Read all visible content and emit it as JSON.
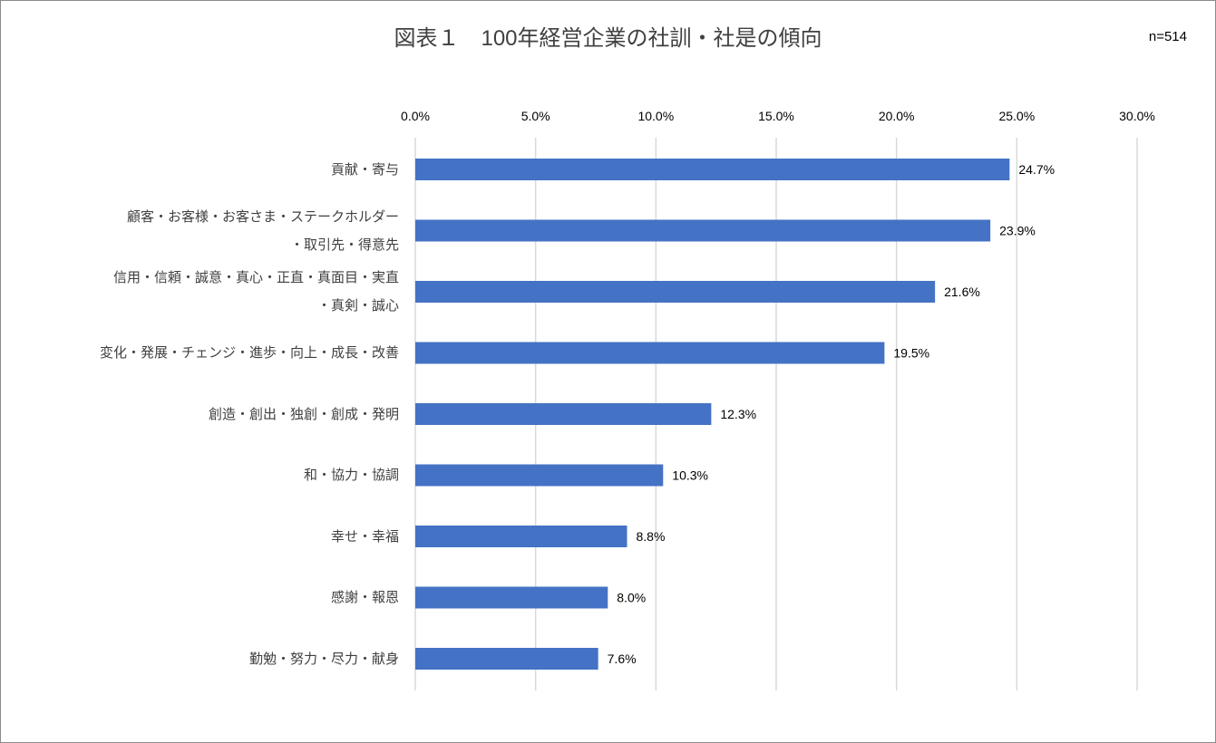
{
  "chart_data": {
    "type": "bar",
    "orientation": "horizontal",
    "title": "図表１　100年経営企業の社訓・社是の傾向",
    "annotation": "n=514",
    "categories": [
      "貢献・寄与",
      "顧客・お客様・お客さま・ステークホルダー\n・取引先・得意先",
      "信用・信頼・誠意・真心・正直・真面目・実直\n・真剣・誠心",
      "変化・発展・チェンジ・進歩・向上・成長・改善",
      "創造・創出・独創・創成・発明",
      "和・協力・協調",
      "幸せ・幸福",
      "感謝・報恩",
      "勤勉・努力・尽力・献身"
    ],
    "values": [
      24.7,
      23.9,
      21.6,
      19.5,
      12.3,
      10.3,
      8.8,
      8.0,
      7.6
    ],
    "data_labels": [
      "24.7%",
      "23.9%",
      "21.6%",
      "19.5%",
      "12.3%",
      "10.3%",
      "8.8%",
      "8.0%",
      "7.6%"
    ],
    "xlim": [
      0,
      30
    ],
    "xticks": [
      0,
      5,
      10,
      15,
      20,
      25,
      30
    ],
    "xtick_labels": [
      "0.0%",
      "5.0%",
      "10.0%",
      "15.0%",
      "20.0%",
      "25.0%",
      "30.0%"
    ],
    "xaxis_position": "top",
    "grid": true,
    "bar_color": "#4472C4",
    "grid_color": "#D9D9D9"
  }
}
